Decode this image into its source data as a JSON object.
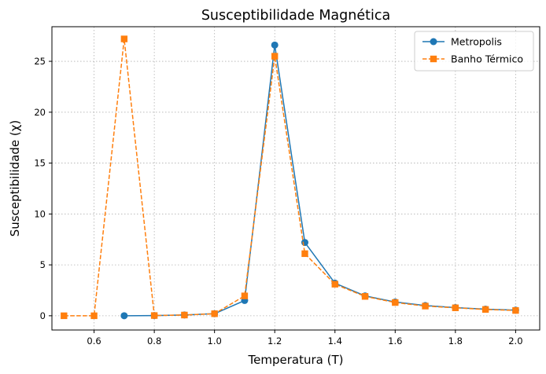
{
  "chart_data": {
    "type": "line",
    "title": "Susceptibilidade Magnética",
    "xlabel": "Temperatura (T)",
    "ylabel": "Susceptibilidade (χ)",
    "xlim": [
      0.46,
      2.08
    ],
    "ylim": [
      -1.4,
      28.4
    ],
    "xticks": [
      0.6,
      0.8,
      1.0,
      1.2,
      1.4,
      1.6,
      1.8,
      2.0
    ],
    "xtick_labels": [
      "0.6",
      "0.8",
      "1.0",
      "1.2",
      "1.4",
      "1.6",
      "1.8",
      "2.0"
    ],
    "yticks": [
      0,
      5,
      10,
      15,
      20,
      25
    ],
    "ytick_labels": [
      "0",
      "5",
      "10",
      "15",
      "20",
      "25"
    ],
    "grid": true,
    "legend_position": "top-right",
    "x": [
      0.5,
      0.6,
      0.7,
      0.8,
      0.9,
      1.0,
      1.1,
      1.2,
      1.3,
      1.4,
      1.5,
      1.6,
      1.7,
      1.8,
      1.9,
      2.0
    ],
    "series": [
      {
        "name": "Metropolis",
        "color": "#1f77b4",
        "marker": "circle",
        "linestyle": "solid",
        "x": [
          0.7,
          0.8,
          0.9,
          1.0,
          1.1,
          1.2,
          1.3,
          1.4,
          1.5,
          1.6,
          1.7,
          1.8,
          1.9,
          2.0
        ],
        "values": [
          0.0,
          0.02,
          0.08,
          0.2,
          1.5,
          26.6,
          7.2,
          3.2,
          1.95,
          1.35,
          1.0,
          0.8,
          0.65,
          0.55
        ]
      },
      {
        "name": "Banho Térmico",
        "color": "#ff7f0e",
        "marker": "square",
        "linestyle": "dashed",
        "x": [
          0.5,
          0.6,
          0.7,
          0.8,
          0.9,
          1.0,
          1.1,
          1.2,
          1.3,
          1.4,
          1.5,
          1.6,
          1.7,
          1.8,
          1.9,
          2.0
        ],
        "values": [
          0.0,
          0.0,
          27.2,
          0.02,
          0.07,
          0.2,
          1.95,
          25.5,
          6.1,
          3.1,
          1.9,
          1.3,
          0.95,
          0.78,
          0.62,
          0.52
        ]
      }
    ]
  }
}
